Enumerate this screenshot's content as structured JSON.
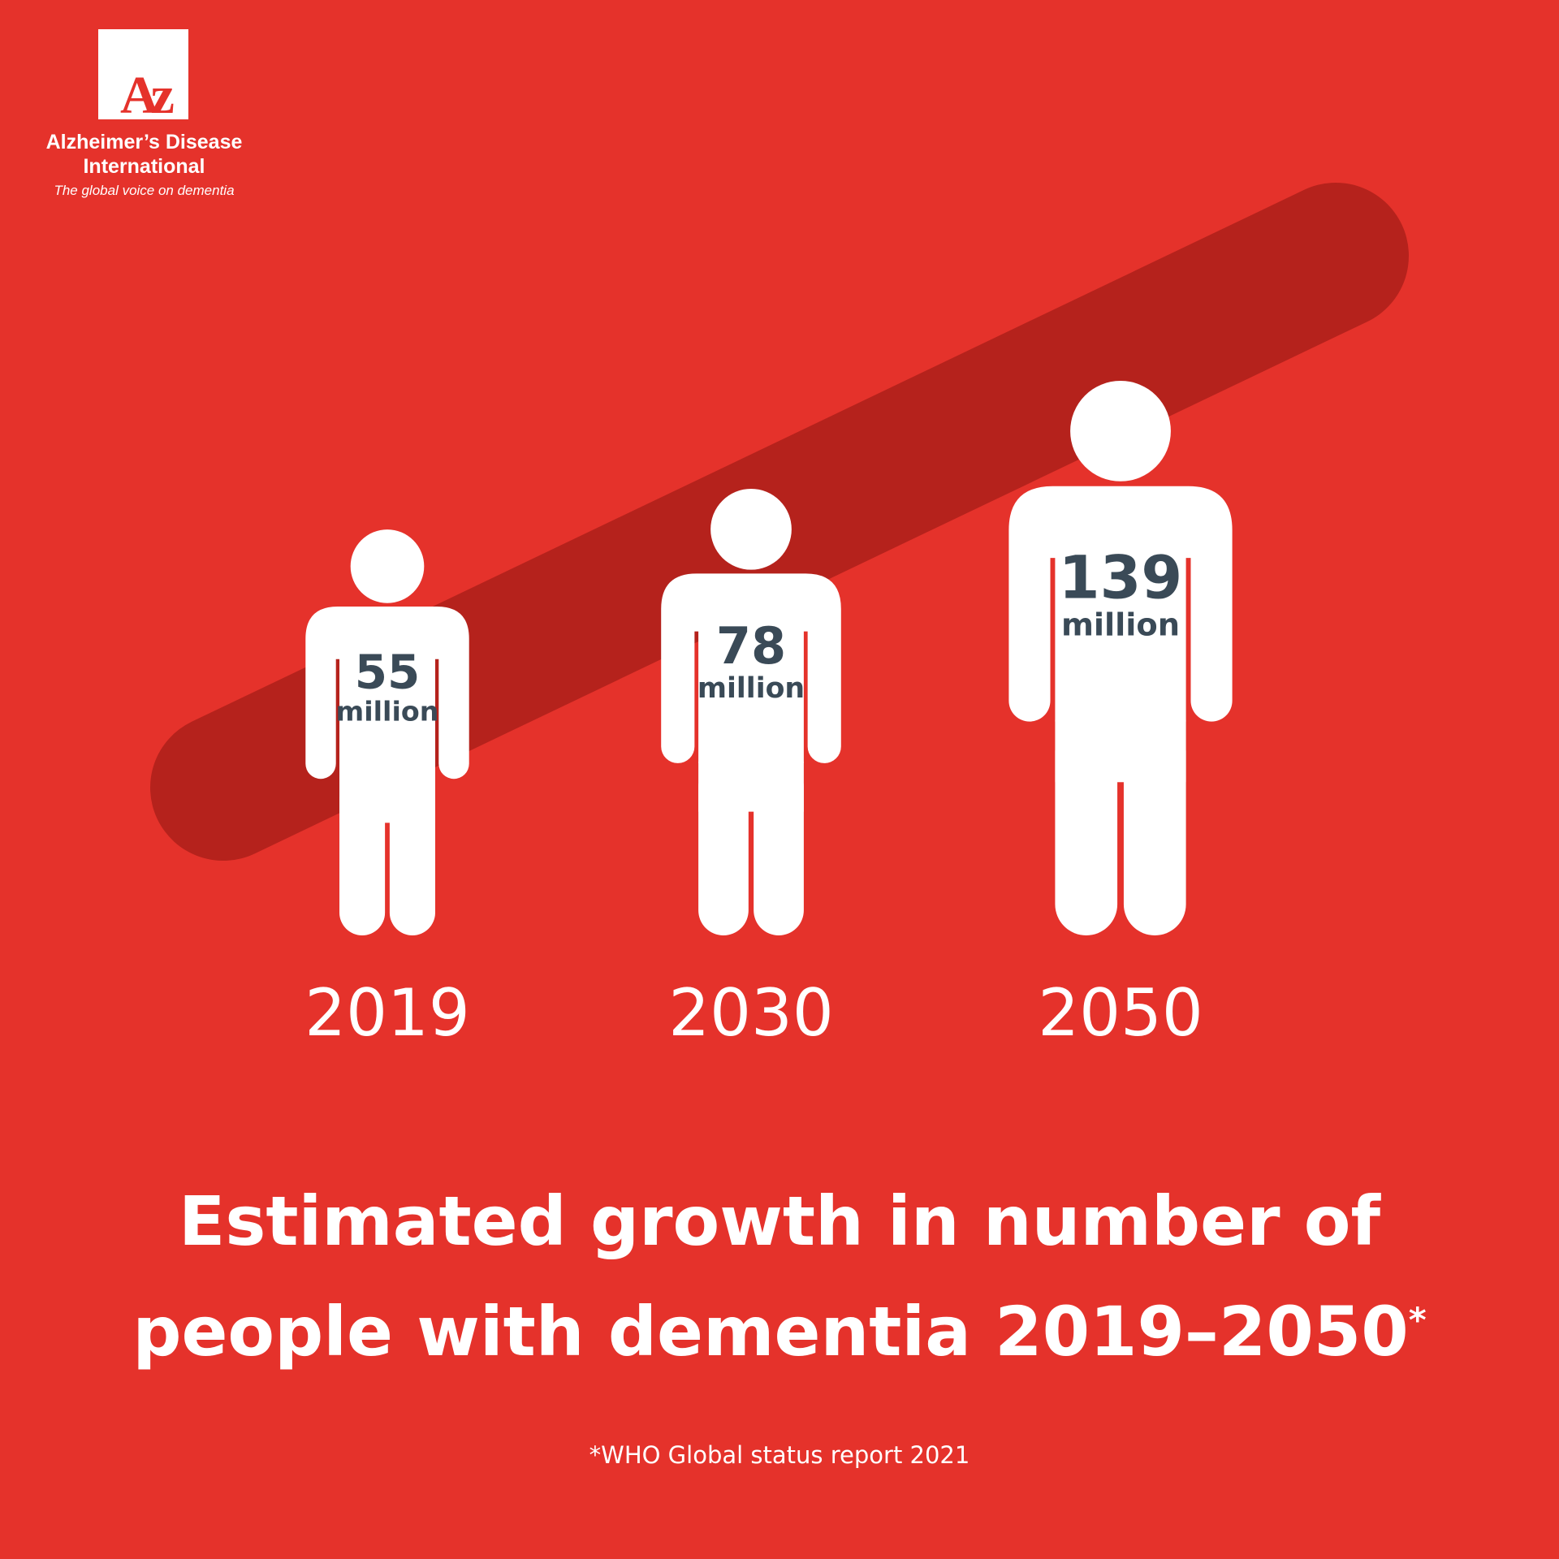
{
  "logo": {
    "monogram": "Az",
    "name_line1": "Alzheimer’s Disease",
    "name_line2": "International",
    "tagline": "The global voice on dementia"
  },
  "colors": {
    "background": "#e5322b",
    "trend_band": "#b5221c",
    "figure": "#ffffff",
    "value_text": "#3a4a57"
  },
  "chart_data": {
    "type": "bar",
    "categories": [
      "2019",
      "2030",
      "2050"
    ],
    "values": [
      55,
      78,
      139
    ],
    "value_labels": [
      "55",
      "78",
      "139"
    ],
    "unit_label": "million",
    "title_line1": "Estimated growth in number of",
    "title_line2": "people with dementia 2019–2050",
    "title_mark": "*",
    "footnote": "*WHO Global status report 2021"
  }
}
